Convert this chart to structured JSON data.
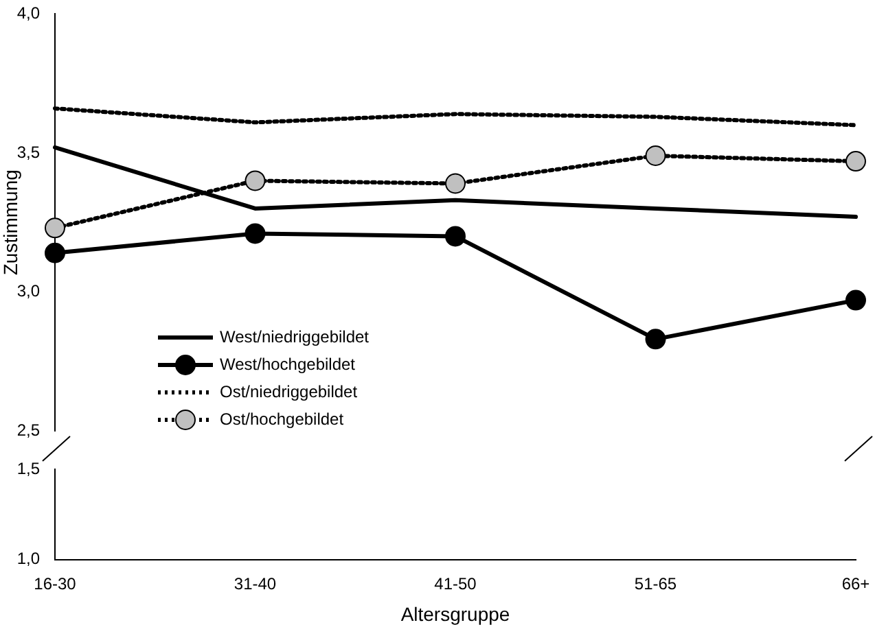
{
  "chart_data": [
    {
      "type": "line",
      "ylabel": "Zustimmung",
      "ylim": [
        2.5,
        4.0
      ],
      "yticks": [
        {
          "value": 2.5,
          "label": "2,5"
        },
        {
          "value": 3.0,
          "label": "3,0"
        },
        {
          "value": 3.5,
          "label": "3,5"
        },
        {
          "value": 4.0,
          "label": "4,0"
        }
      ],
      "tick_labels": "y",
      "grid": false,
      "legend": "bottom left",
      "series": [
        {
          "name": "West/niedriggebildet",
          "color": "#000000",
          "line_style": "solid",
          "marker": "none",
          "values": [
            3.52,
            3.3,
            3.33,
            3.3,
            3.27
          ]
        },
        {
          "name": "West/hochgebildet",
          "color": "#000000",
          "colors": [
            "#000000",
            "#000000",
            "#000000",
            "#000000",
            "#000000"
          ],
          "line_style": "solid",
          "marker": "circle",
          "values": [
            3.14,
            3.21,
            3.2,
            2.83,
            2.97
          ]
        },
        {
          "name": "Ost/niedriggebildet",
          "color": "#000000",
          "line_style": "dotted",
          "marker": "none",
          "values": [
            3.66,
            3.61,
            3.64,
            3.63,
            3.6
          ]
        },
        {
          "name": "Ost/hochgebildet",
          "color": "#000000",
          "colors": [
            "#c0c0c0",
            "#c0c0c0",
            "#c0c0c0",
            "#c0c0c0",
            "#c0c0c0"
          ],
          "line_style": "dotted",
          "marker": "circle",
          "values": [
            3.23,
            3.4,
            3.39,
            3.49,
            3.47
          ]
        }
      ]
    },
    {
      "type": "line",
      "xlabel": "Altersgruppe",
      "categories": [
        "16-30",
        "31-40",
        "41-50",
        "51-65",
        "66+"
      ],
      "ylim": [
        1.0,
        1.5
      ],
      "yticks": [
        {
          "value": 1.0,
          "label": "1,0"
        },
        {
          "value": 1.5,
          "label": "1,5"
        }
      ],
      "grid": false
    }
  ]
}
